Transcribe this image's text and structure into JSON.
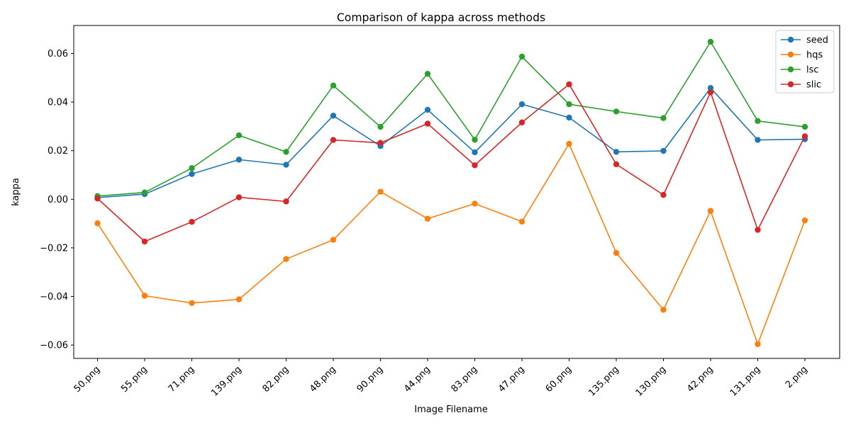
{
  "chart_data": {
    "type": "line",
    "title": "Comparison of kappa across methods",
    "xlabel": "Image Filename",
    "ylabel": "kappa",
    "categories": [
      "50.png",
      "55.png",
      "71.png",
      "139.png",
      "82.png",
      "48.png",
      "90.png",
      "44.png",
      "83.png",
      "47.png",
      "60.png",
      "135.png",
      "130.png",
      "42.png",
      "131.png",
      "2.png"
    ],
    "ylim": [
      -0.0655,
      0.0715
    ],
    "yticks": [
      -0.06,
      -0.04,
      -0.02,
      0.0,
      0.02,
      0.04,
      0.06
    ],
    "ytick_labels": [
      "−0.06",
      "−0.04",
      "−0.02",
      "0.00",
      "0.02",
      "0.04",
      "0.06"
    ],
    "grid": false,
    "legend": {
      "position": "top-right"
    },
    "series": [
      {
        "name": "seed",
        "color": "#1f77b4",
        "values": [
          0.0007,
          0.0021,
          0.0104,
          0.0163,
          0.0142,
          0.0344,
          0.0219,
          0.0368,
          0.0193,
          0.0391,
          0.0336,
          0.0195,
          0.0199,
          0.0458,
          0.0244,
          0.0247
        ]
      },
      {
        "name": "hqs",
        "color": "#ff7f0e",
        "values": [
          -0.0099,
          -0.0397,
          -0.0427,
          -0.0412,
          -0.0246,
          -0.0167,
          0.0031,
          -0.008,
          -0.0018,
          -0.0092,
          0.0228,
          -0.0221,
          -0.0455,
          -0.0048,
          -0.0596,
          -0.0087
        ]
      },
      {
        "name": "lsc",
        "color": "#2ca02c",
        "values": [
          0.0013,
          0.0028,
          0.0128,
          0.0263,
          0.0195,
          0.0468,
          0.0298,
          0.0516,
          0.0245,
          0.0587,
          0.0391,
          0.0361,
          0.0334,
          0.0648,
          0.0322,
          0.0298
        ]
      },
      {
        "name": "slic",
        "color": "#d62728",
        "values": [
          0.0003,
          -0.0174,
          -0.0093,
          0.0008,
          -0.0009,
          0.0244,
          0.0232,
          0.0311,
          0.014,
          0.0316,
          0.0473,
          0.0144,
          0.0018,
          0.044,
          -0.0126,
          0.0259
        ]
      }
    ]
  }
}
